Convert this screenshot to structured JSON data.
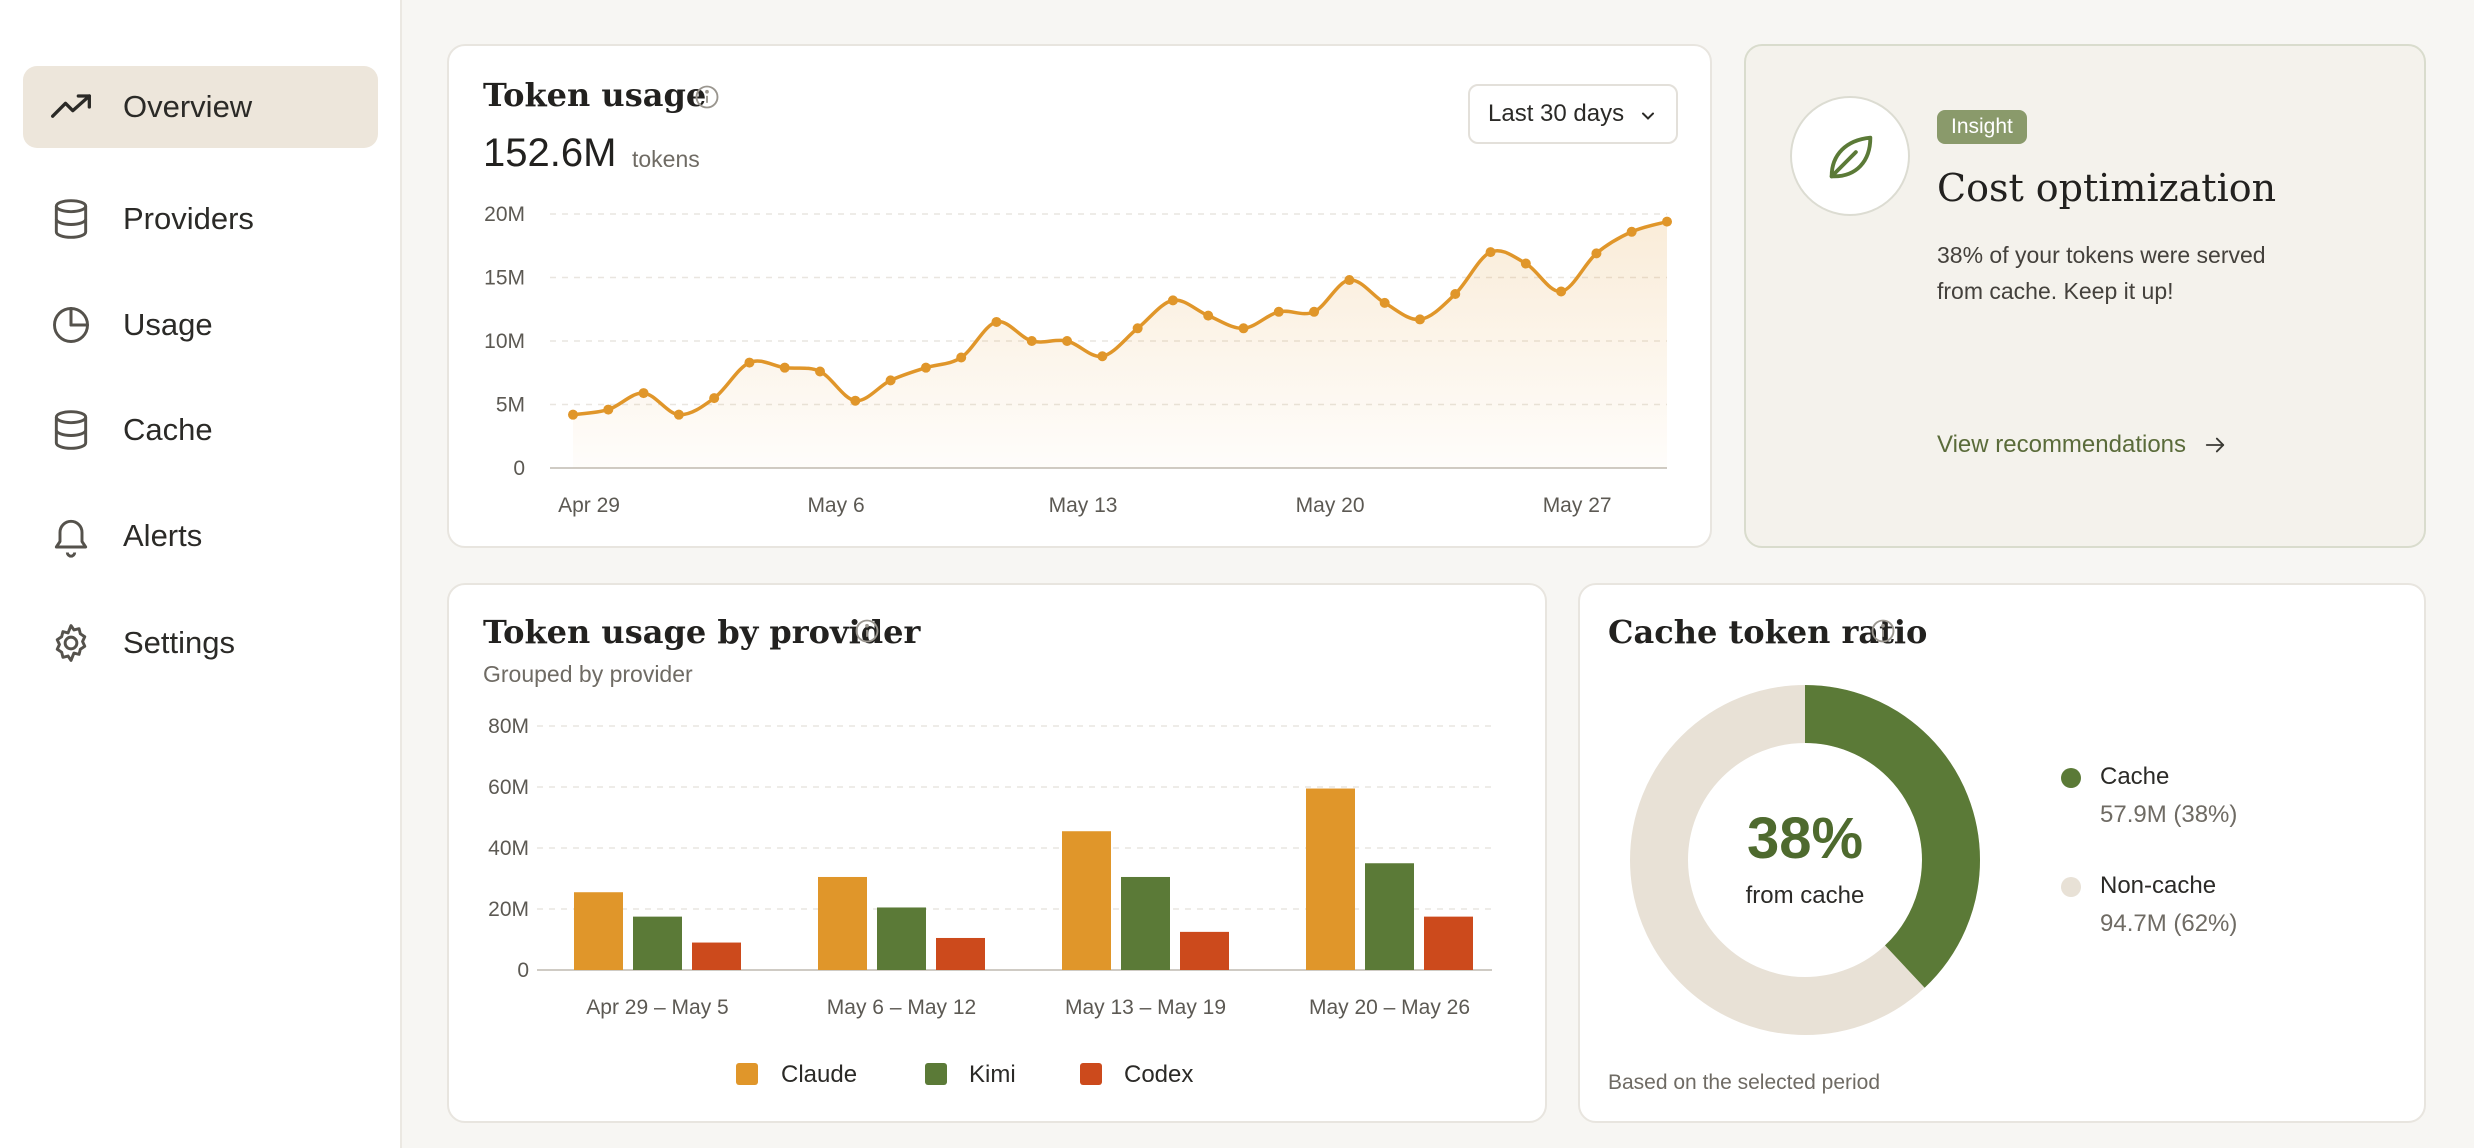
{
  "sidebar": {
    "items": [
      {
        "label": "Overview",
        "icon": "trending-up-icon"
      },
      {
        "label": "Providers",
        "icon": "database-icon"
      },
      {
        "label": "Usage",
        "icon": "pie-chart-icon"
      },
      {
        "label": "Cache",
        "icon": "database-icon"
      },
      {
        "label": "Alerts",
        "icon": "bell-icon"
      },
      {
        "label": "Settings",
        "icon": "gear-icon"
      }
    ]
  },
  "token_usage": {
    "title": "Token usage",
    "total": "152.6M",
    "unit": "tokens",
    "range_label": "Last 30 days"
  },
  "insight": {
    "badge": "Insight",
    "title": "Cost optimization",
    "line1": "38% of your tokens were served",
    "line2": "from cache. Keep it up!",
    "link": "View recommendations",
    "icon": "leaf-icon"
  },
  "provider_usage": {
    "title": "Token usage by provider",
    "subtitle": "Grouped by provider"
  },
  "cache_ratio": {
    "title": "Cache token ratio",
    "center_value": "38%",
    "center_label": "from cache",
    "footnote": "Based on the selected period",
    "legend": [
      {
        "name": "Cache",
        "detail": "57.9M (38%)",
        "color": "#5b7a37"
      },
      {
        "name": "Non-cache",
        "detail": "94.7M (62%)",
        "color": "#e8e1d6"
      }
    ]
  },
  "chart_data": [
    {
      "type": "line",
      "x_ticks": [
        "Apr 29",
        "May 6",
        "May 13",
        "May 20",
        "May 27"
      ],
      "y_ticks": [
        "0",
        "5M",
        "10M",
        "15M",
        "20M"
      ],
      "ylim": [
        0,
        20
      ],
      "color": "#e0962a",
      "values": [
        4.2,
        4.6,
        5.9,
        4.2,
        5.5,
        8.3,
        7.9,
        7.6,
        5.3,
        6.9,
        7.9,
        8.7,
        11.5,
        10.0,
        10.0,
        8.8,
        11.0,
        13.2,
        12.0,
        11.0,
        12.3,
        12.3,
        14.8,
        13.0,
        11.7,
        13.7,
        17.0,
        16.1,
        13.9,
        16.9,
        18.6,
        19.4
      ]
    },
    {
      "type": "bar",
      "categories": [
        "Apr 29 – May 5",
        "May 6 – May 12",
        "May 13 – May 19",
        "May 20 – May 26"
      ],
      "y_ticks": [
        "0",
        "20M",
        "40M",
        "60M",
        "80M"
      ],
      "ylim": [
        0,
        80
      ],
      "series": [
        {
          "name": "Claude",
          "color": "#e0962a",
          "values": [
            25.5,
            30.5,
            45.5,
            59.5
          ]
        },
        {
          "name": "Kimi",
          "color": "#5b7a37",
          "values": [
            17.5,
            20.5,
            30.5,
            35.0
          ]
        },
        {
          "name": "Codex",
          "color": "#cc4a1c",
          "values": [
            9.0,
            10.5,
            12.5,
            17.5
          ]
        }
      ]
    },
    {
      "type": "pie",
      "labels": [
        "Cache",
        "Non-cache"
      ],
      "values": [
        38,
        62
      ],
      "colors": [
        "#5b7a37",
        "#e8e1d6"
      ]
    }
  ]
}
